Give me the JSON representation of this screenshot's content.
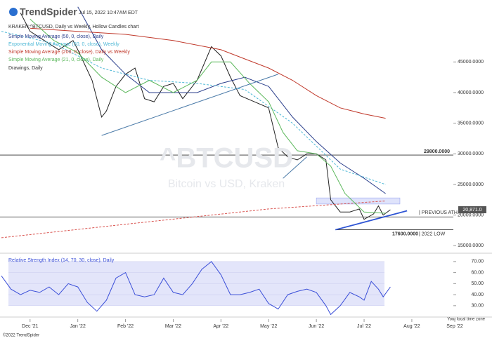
{
  "header": {
    "logo": "TrendSpider",
    "timestamp": "Jul 15, 2022 10:47AM EDT",
    "symbol_line": "KRAKEN:^BTCUSD, Daily vs Weekly, Hollow Candles chart",
    "drawings": "Drawings, Daily",
    "watermark": "^BTCUSD",
    "watermark_sub": "Bitcoin vs USD, Kraken",
    "timezone": "Your local time zone",
    "copyright": "©2022 TrendSpider"
  },
  "chart_data": [
    {
      "type": "line",
      "title": "KRAKEN:^BTCUSD",
      "xlim": [
        -0.63,
        8.87
      ],
      "xticks": [
        {
          "value": 0,
          "label": "Dec '21"
        },
        {
          "value": 1,
          "label": "Jan '22"
        },
        {
          "value": 2,
          "label": "Feb '22"
        },
        {
          "value": 3,
          "label": "Mar '22"
        },
        {
          "value": 4,
          "label": "Apr '22"
        },
        {
          "value": 5,
          "label": "May '22"
        },
        {
          "value": 6,
          "label": "Jun '22"
        },
        {
          "value": 7,
          "label": "Jul '22"
        },
        {
          "value": 8,
          "label": "Aug '22"
        },
        {
          "value": 8.9,
          "label": "Sep '22"
        }
      ],
      "ylim": [
        14000,
        55000
      ],
      "yticks": [
        {
          "value": 15000,
          "label": "15000.0000"
        },
        {
          "value": 20000,
          "label": "20000.0000"
        },
        {
          "value": 25000,
          "label": "25000.0000"
        },
        {
          "value": 30000,
          "label": "30000.0000"
        },
        {
          "value": 35000,
          "label": "35000.0000"
        },
        {
          "value": 40000,
          "label": "40000.0000"
        },
        {
          "value": 45000,
          "label": "45000.0000"
        }
      ],
      "series": [
        {
          "color": "#222222",
          "dashed": false,
          "width": 1,
          "x": [
            -0.2,
            0,
            0.3,
            0.6,
            0.9,
            1.0,
            1.3,
            1.5,
            1.6,
            1.8,
            2.0,
            2.2,
            2.4,
            2.6,
            2.8,
            3.0,
            3.2,
            3.5,
            3.8,
            4.0,
            4.2,
            4.4,
            4.7,
            5.0,
            5.2,
            5.4,
            5.6,
            5.8,
            6.0,
            6.2,
            6.3,
            6.5,
            6.7,
            6.9,
            7.0,
            7.2,
            7.3,
            7.4,
            7.55
          ],
          "values": [
            53000,
            50000,
            48500,
            47000,
            48500,
            47000,
            42000,
            36000,
            37000,
            41000,
            43000,
            44000,
            39000,
            38500,
            41000,
            41500,
            39000,
            42000,
            47500,
            46000,
            42500,
            39500,
            38500,
            37500,
            31000,
            29500,
            29000,
            30000,
            30000,
            29000,
            22500,
            20500,
            20500,
            21000,
            19300,
            20200,
            21500,
            20000,
            20871
          ]
        },
        {
          "name": "Simple Moving Average (50, 0, close), Daily",
          "color": "#2b3f8c",
          "dashed": false,
          "width": 1,
          "x": [
            1.0,
            1.5,
            2.0,
            2.5,
            3.0,
            3.5,
            4.0,
            4.5,
            5.0,
            5.5,
            6.0,
            6.5,
            7.0,
            7.45
          ],
          "values": [
            54000,
            47000,
            43000,
            40000,
            40000,
            40000,
            41500,
            42500,
            41000,
            36000,
            32000,
            28500,
            26000,
            23500
          ]
        },
        {
          "name": "Exponential Moving Average (50, 0, close), Weekly",
          "color": "#4fb8d6",
          "dashed": true,
          "width": 1,
          "x": [
            -0.6,
            0.5,
            1.5,
            2.5,
            3.5,
            4.5,
            5.5,
            6.5,
            7.45
          ],
          "values": [
            50000,
            48000,
            44000,
            42000,
            41500,
            40500,
            35000,
            27500,
            25000
          ]
        },
        {
          "name": "Simple Moving Average (200, 0, close), Daily vs Weekly",
          "color": "#c0392b",
          "dashed": false,
          "width": 1,
          "x": [
            0,
            1,
            2,
            3,
            4,
            4.5,
            5,
            5.5,
            6,
            6.5,
            7,
            7.45
          ],
          "values": [
            50500,
            50000,
            49500,
            48500,
            47000,
            45500,
            44000,
            42000,
            39500,
            37500,
            36500,
            35800
          ]
        },
        {
          "color": "#d9534f",
          "dashed": true,
          "width": 1,
          "x": [
            -0.6,
            2,
            5,
            7.45
          ],
          "values": [
            16300,
            18500,
            21000,
            22300
          ]
        },
        {
          "name": "Simple Moving Average (21, 0, close), Daily",
          "color": "#5cb85c",
          "dashed": false,
          "width": 1,
          "x": [
            0,
            0.5,
            1.0,
            1.5,
            2.0,
            2.5,
            3.0,
            3.5,
            3.8,
            4.2,
            4.6,
            5.0,
            5.3,
            5.6,
            6.0,
            6.3,
            6.6,
            7.0,
            7.45
          ],
          "values": [
            52000,
            48500,
            46500,
            42500,
            40000,
            42000,
            40000,
            42000,
            45000,
            45000,
            41500,
            38500,
            33500,
            30500,
            30000,
            28000,
            23500,
            20500,
            20300
          ]
        }
      ],
      "trendlines": [
        {
          "color": "#4a7aa8",
          "x": [
            1.5,
            5.2
          ],
          "values": [
            33000,
            43000
          ]
        },
        {
          "color": "#4a7aa8",
          "x": [
            5.3,
            5.8
          ],
          "values": [
            26000,
            29500
          ]
        },
        {
          "color": "#2f55d4",
          "x": [
            6.4,
            7.9
          ],
          "values": [
            17600,
            20700
          ]
        }
      ],
      "levels": [
        {
          "value": 29800,
          "label": "29800.0000",
          "from": -0.63
        },
        {
          "value": 19700,
          "note": "| PREVIOUS ATH",
          "from": -0.63
        },
        {
          "value": 17600,
          "label": "17600.0000",
          "note": "| 2022 LOW",
          "from": 6.4
        }
      ],
      "zone": {
        "x": [
          6.0,
          7.75
        ],
        "values": [
          21800,
          22800
        ],
        "color": "#dfe3fb"
      },
      "last_price": {
        "value": 20871,
        "label": "20,871.0"
      }
    },
    {
      "type": "line",
      "title": "Relative Strength Index (14, 70, 30, close), Daily",
      "xlim": [
        -0.63,
        8.87
      ],
      "ylim": [
        21,
        75
      ],
      "yticks": [
        {
          "value": 30,
          "label": "30.00"
        },
        {
          "value": 40,
          "label": "40.00"
        },
        {
          "value": 50,
          "label": "50.00"
        },
        {
          "value": 60,
          "label": "60.00"
        },
        {
          "value": 70,
          "label": "70.00"
        }
      ],
      "band": [
        30,
        70
      ],
      "band_color": "#e3e5fa",
      "series": [
        {
          "color": "#3b4fd8",
          "dashed": false,
          "width": 1,
          "x": [
            -0.6,
            -0.4,
            -0.2,
            0,
            0.2,
            0.4,
            0.6,
            0.8,
            1.0,
            1.2,
            1.4,
            1.6,
            1.8,
            2.0,
            2.2,
            2.4,
            2.6,
            2.8,
            3.0,
            3.2,
            3.4,
            3.6,
            3.8,
            4.0,
            4.2,
            4.4,
            4.6,
            4.8,
            5.0,
            5.2,
            5.4,
            5.6,
            5.8,
            6.0,
            6.2,
            6.3,
            6.5,
            6.7,
            6.9,
            7.0,
            7.15,
            7.3,
            7.4,
            7.55
          ],
          "values": [
            57,
            45,
            40,
            44,
            42,
            47,
            40,
            50,
            47,
            33,
            25,
            35,
            55,
            60,
            40,
            38,
            40,
            55,
            42,
            40,
            50,
            63,
            70,
            58,
            40,
            40,
            42,
            45,
            32,
            27,
            40,
            43,
            45,
            42,
            30,
            22,
            30,
            42,
            38,
            35,
            52,
            45,
            38,
            47
          ]
        }
      ]
    }
  ]
}
